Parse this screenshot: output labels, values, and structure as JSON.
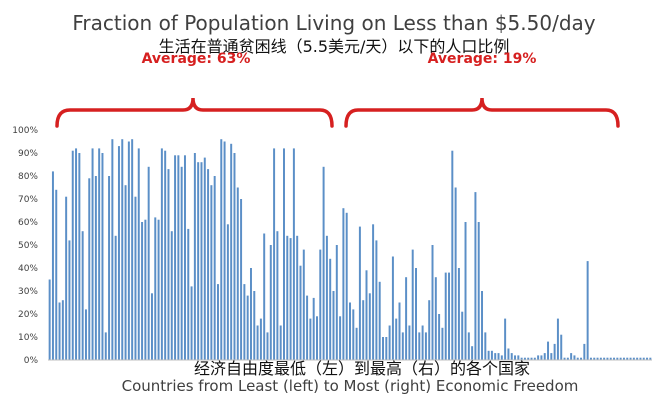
{
  "chart_data": {
    "type": "bar",
    "title": "Fraction of Population Living on Less than $5.50/day",
    "subtitle": "生活在普通贫困线（5.5美元/天）以下的人口比例",
    "xlabel": "Countries from Least (left) to Most (right) Economic Freedom",
    "xlabel_zh": "经济自由度最低（左）到最高（右）的各个国家",
    "ylabel": "",
    "ylim": [
      0,
      100
    ],
    "yticks": [
      "0%",
      "10%",
      "20%",
      "30%",
      "40%",
      "50%",
      "60%",
      "70%",
      "80%",
      "90%",
      "100%"
    ],
    "grid": false,
    "bar_color": "#5b8fc7",
    "annotations": [
      {
        "text": "Average: 63%",
        "group": "left",
        "color": "#d62020"
      },
      {
        "text": "Average: 19%",
        "group": "right",
        "color": "#d62020"
      }
    ],
    "values": [
      35,
      82,
      74,
      25,
      26,
      71,
      52,
      91,
      92,
      90,
      56,
      22,
      79,
      92,
      80,
      92,
      90,
      12,
      80,
      96,
      54,
      93,
      96,
      76,
      95,
      96,
      71,
      92,
      60,
      61,
      84,
      29,
      62,
      61,
      92,
      91,
      83,
      56,
      89,
      89,
      84,
      89,
      57,
      32,
      90,
      86,
      86,
      88,
      83,
      76,
      80,
      33,
      96,
      95,
      59,
      94,
      90,
      75,
      70,
      33,
      28,
      40,
      30,
      15,
      18,
      55,
      12,
      50,
      92,
      56,
      15,
      92,
      54,
      53,
      92,
      54,
      41,
      48,
      28,
      18,
      27,
      19,
      48,
      84,
      54,
      44,
      30,
      50,
      19,
      66,
      64,
      25,
      22,
      14,
      58,
      26,
      39,
      29,
      59,
      52,
      34,
      10,
      10,
      15,
      45,
      18,
      25,
      12,
      36,
      15,
      48,
      40,
      12,
      15,
      12,
      26,
      50,
      36,
      20,
      14,
      38,
      38,
      91,
      75,
      40,
      21,
      60,
      12,
      6,
      73,
      60,
      30,
      12,
      4,
      4,
      3,
      3,
      2,
      18,
      5,
      3,
      2,
      2,
      1,
      1,
      1,
      1,
      1,
      2,
      2,
      3,
      8,
      3,
      7,
      18,
      11,
      1,
      1,
      3,
      2,
      1,
      1,
      7,
      43,
      1,
      1,
      1,
      1,
      1,
      1,
      1,
      1,
      1,
      1,
      1,
      1,
      1,
      1,
      1,
      1,
      1,
      1,
      1
    ]
  }
}
